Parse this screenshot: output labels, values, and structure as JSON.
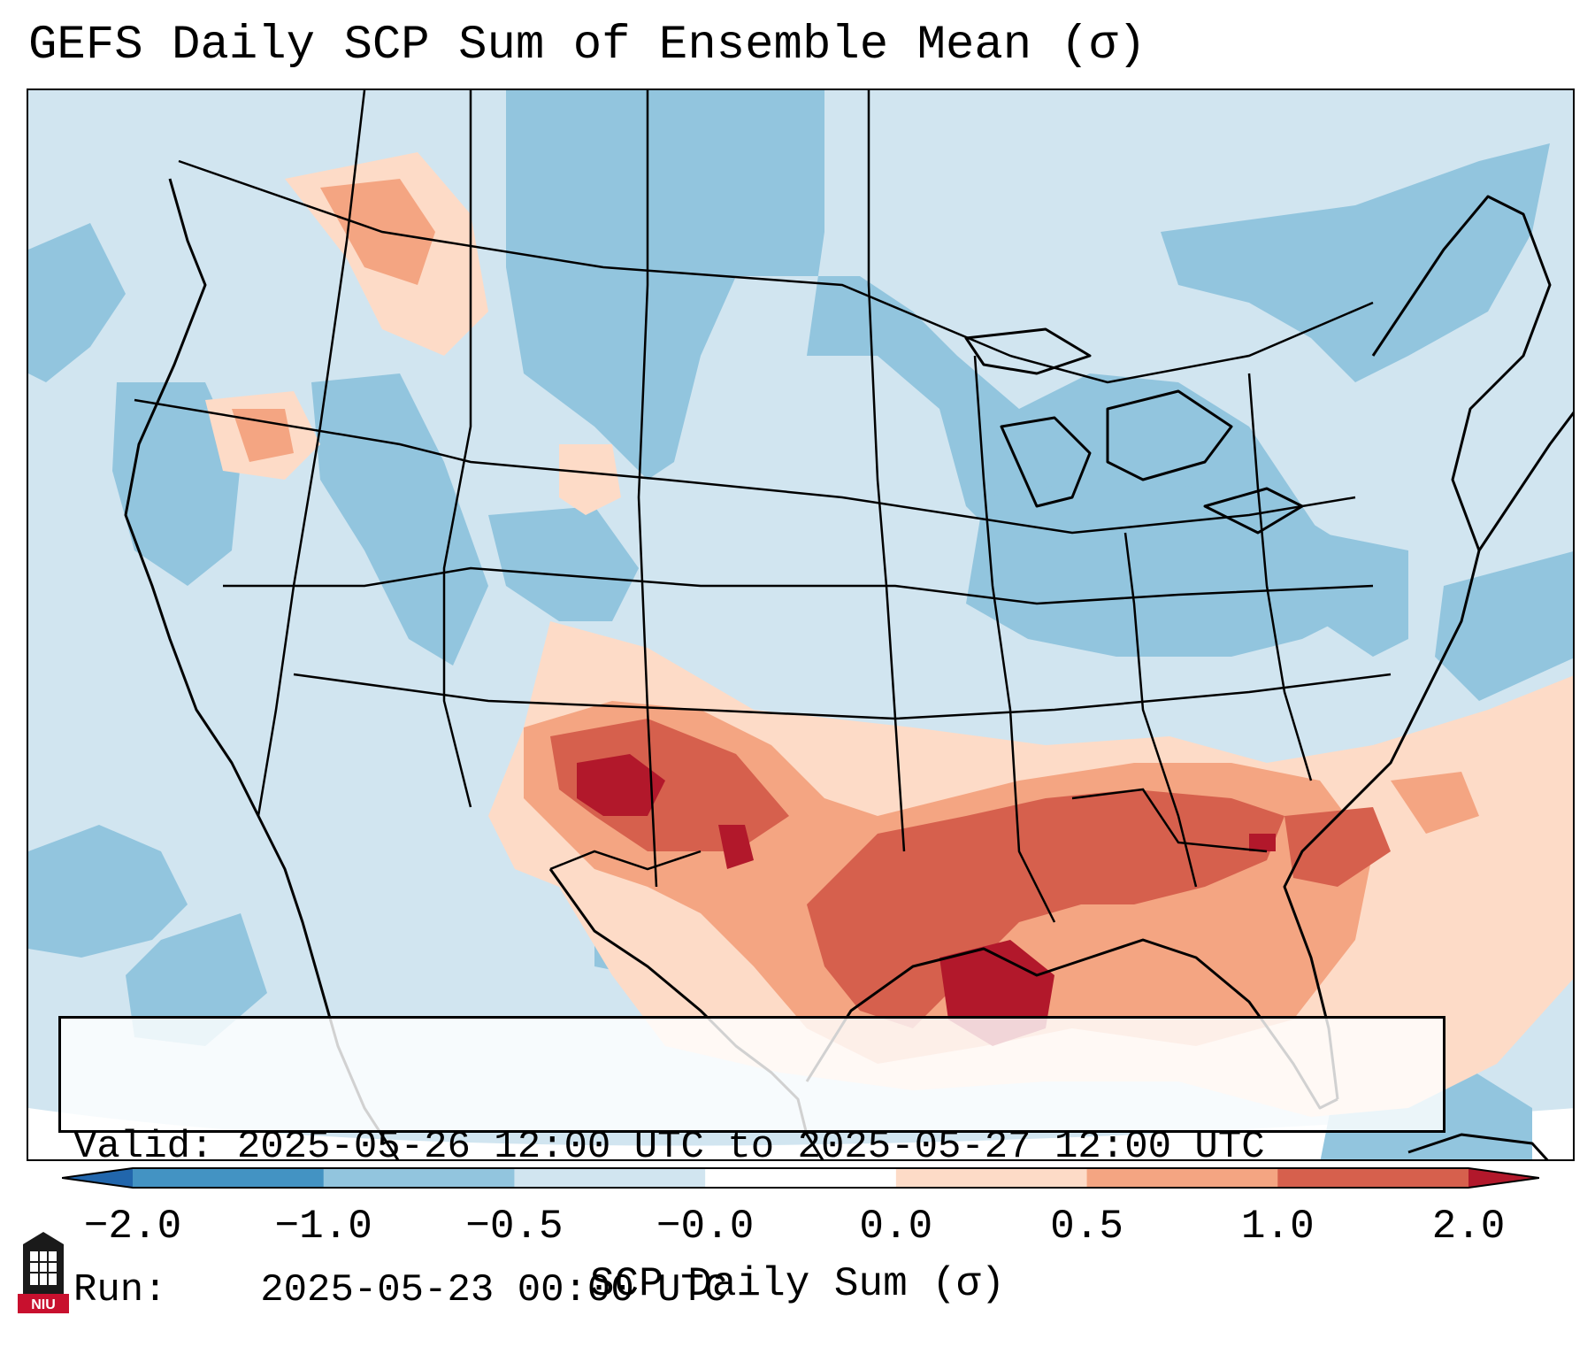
{
  "title": "GEFS Daily SCP Sum of Ensemble Mean (σ)",
  "info": {
    "valid_label": "Valid:",
    "valid_value": "2025-05-26 12:00 UTC to 2025-05-27 12:00 UTC",
    "run_label": "Run:",
    "run_value": "2025-05-23 00:00 UTC"
  },
  "colorbar": {
    "label": "SCP Daily Sum (σ)",
    "ticks": [
      "−2.0",
      "−1.0",
      "−0.5",
      "−0.0",
      "0.0",
      "0.5",
      "1.0",
      "2.0"
    ],
    "bins": [
      {
        "from": "-2.0",
        "to": "-1.0",
        "color": "#4393c3"
      },
      {
        "from": "-1.0",
        "to": "-0.5",
        "color": "#92c5de"
      },
      {
        "from": "-0.5",
        "to": "-0.0",
        "color": "#d1e5f0"
      },
      {
        "from": "-0.0",
        "to": "0.0",
        "color": "#ffffff"
      },
      {
        "from": "0.0",
        "to": "0.5",
        "color": "#fddbc7"
      },
      {
        "from": "0.5",
        "to": "1.0",
        "color": "#f4a582"
      },
      {
        "from": "1.0",
        "to": "2.0",
        "color": "#d6604d"
      }
    ],
    "under_color": "#2166ac",
    "over_color": "#b2182b"
  },
  "logo_text": "NIU",
  "colors": {
    "lightest_blue": "#d1e5f0",
    "light_blue": "#92c5de",
    "light_red": "#fddbc7",
    "mid_red": "#f4a582",
    "red": "#d6604d",
    "dark_red": "#b2182b",
    "niu_red": "#c8102e"
  }
}
